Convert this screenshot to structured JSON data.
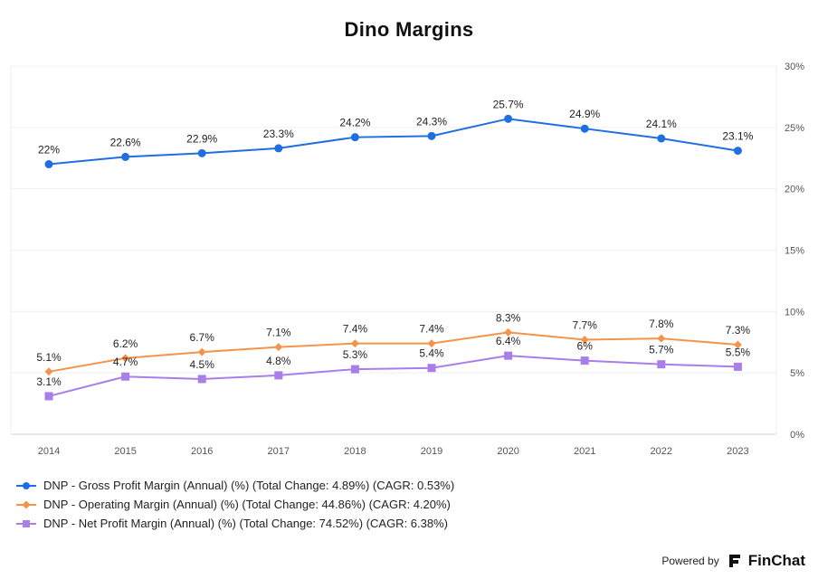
{
  "title": "Dino Margins",
  "chart_data": {
    "type": "line",
    "title": "Dino Margins",
    "xlabel": "",
    "ylabel": "",
    "categories": [
      "2014",
      "2015",
      "2016",
      "2017",
      "2018",
      "2019",
      "2020",
      "2021",
      "2022",
      "2023"
    ],
    "ylim": [
      0,
      30
    ],
    "yticks": [
      "0%",
      "5%",
      "10%",
      "15%",
      "20%",
      "25%",
      "30%"
    ],
    "grid": true,
    "legend_position": "bottom-left",
    "series": [
      {
        "name": "DNP - Gross Profit Margin (Annual) (%) (Total Change: 4.89%) (CAGR: 0.53%)",
        "color": "#1f6fe0",
        "marker": "circle",
        "values": [
          22,
          22.6,
          22.9,
          23.3,
          24.2,
          24.3,
          25.7,
          24.9,
          24.1,
          23.1
        ],
        "labels": [
          "22%",
          "22.6%",
          "22.9%",
          "23.3%",
          "24.2%",
          "24.3%",
          "25.7%",
          "24.9%",
          "24.1%",
          "23.1%"
        ]
      },
      {
        "name": "DNP - Operating Margin (Annual) (%) (Total Change: 44.86%) (CAGR: 4.20%)",
        "color": "#f5934a",
        "marker": "diamond",
        "values": [
          5.1,
          6.2,
          6.7,
          7.1,
          7.4,
          7.4,
          8.3,
          7.7,
          7.8,
          7.3
        ],
        "labels": [
          "5.1%",
          "6.2%",
          "6.7%",
          "7.1%",
          "7.4%",
          "7.4%",
          "8.3%",
          "7.7%",
          "7.8%",
          "7.3%"
        ]
      },
      {
        "name": "DNP - Net Profit Margin (Annual) (%) (Total Change: 74.52%) (CAGR: 6.38%)",
        "color": "#a87ee8",
        "marker": "square",
        "values": [
          3.1,
          4.7,
          4.5,
          4.8,
          5.3,
          5.4,
          6.4,
          6,
          5.7,
          5.5
        ],
        "labels": [
          "3.1%",
          "4.7%",
          "4.5%",
          "4.8%",
          "5.3%",
          "5.4%",
          "6.4%",
          "6%",
          "5.7%",
          "5.5%"
        ]
      }
    ]
  },
  "footer": {
    "powered_by": "Powered by",
    "brand": "FinChat"
  }
}
